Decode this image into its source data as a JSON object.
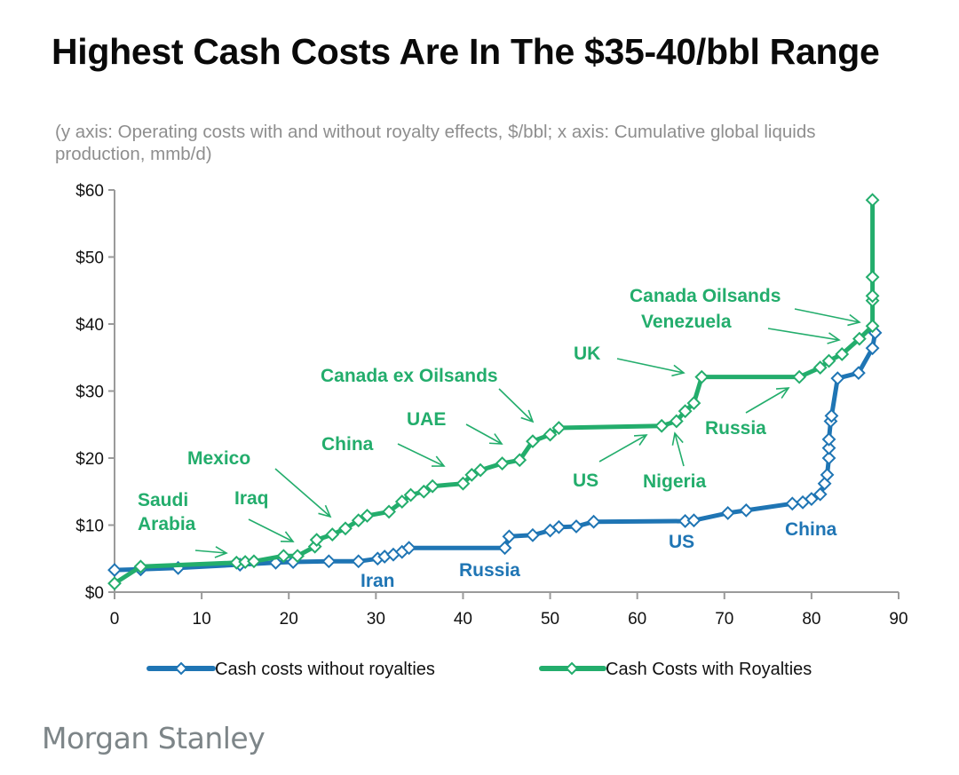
{
  "header": {
    "title": "Highest Cash Costs Are In The $35-40/bbl Range",
    "subtitle": "(y axis: Operating costs with and without royalty effects, $/bbl; x axis: Cumulative global liquids production, mmb/d)"
  },
  "footer": {
    "brand": "Morgan Stanley"
  },
  "colors": {
    "without_royalties": "#1f75b4",
    "with_royalties": "#23ad6c",
    "axis": "#9a9a9a"
  },
  "chart_data": {
    "type": "line",
    "title": "Highest Cash Costs Are In The $35-40/bbl Range",
    "xlabel": "Cumulative global liquids production, mmb/d",
    "ylabel": "Operating costs with and without royalty effects, $/bbl",
    "xlim": [
      0,
      90
    ],
    "ylim": [
      0,
      60
    ],
    "x_ticks": [
      0,
      10,
      20,
      30,
      40,
      50,
      60,
      70,
      80,
      90
    ],
    "x_tick_labels": [
      "0",
      "10",
      "20",
      "30",
      "40",
      "50",
      "60",
      "70",
      "80",
      "90"
    ],
    "y_ticks": [
      0,
      10,
      20,
      30,
      40,
      50,
      60
    ],
    "y_tick_labels": [
      "$0",
      "$10",
      "$20",
      "$30",
      "$40",
      "$50",
      "$60"
    ],
    "grid": false,
    "legend_position": "bottom",
    "series": [
      {
        "name": "Cash costs without royalties",
        "color": "#1f75b4",
        "marker": "diamond",
        "points": [
          [
            0,
            3.3
          ],
          [
            3,
            3.4
          ],
          [
            7.3,
            3.6
          ],
          [
            14.4,
            4.1
          ],
          [
            18.5,
            4.4
          ],
          [
            20.5,
            4.5
          ],
          [
            24.6,
            4.6
          ],
          [
            28,
            4.6
          ],
          [
            30.2,
            5.0
          ],
          [
            31,
            5.3
          ],
          [
            32,
            5.6
          ],
          [
            33,
            6.0
          ],
          [
            33.8,
            6.6
          ],
          [
            44.8,
            6.6
          ],
          [
            45.3,
            8.3
          ],
          [
            48,
            8.5
          ],
          [
            50,
            9.2
          ],
          [
            51,
            9.7
          ],
          [
            53,
            9.8
          ],
          [
            55,
            10.5
          ],
          [
            65.5,
            10.6
          ],
          [
            66.5,
            10.7
          ],
          [
            70.4,
            11.8
          ],
          [
            72.5,
            12.2
          ],
          [
            77.8,
            13.2
          ],
          [
            79,
            13.4
          ],
          [
            80,
            13.9
          ],
          [
            81,
            14.6
          ],
          [
            81.5,
            16.2
          ],
          [
            81.8,
            17.5
          ],
          [
            82,
            20
          ],
          [
            82,
            21.5
          ],
          [
            82,
            22.8
          ],
          [
            82.2,
            25.5
          ],
          [
            82.3,
            26.3
          ],
          [
            83,
            31.9
          ],
          [
            85.4,
            32.7
          ],
          [
            87,
            36.4
          ],
          [
            87.3,
            38.7
          ]
        ]
      },
      {
        "name": "Cash Costs with Royalties",
        "color": "#23ad6c",
        "marker": "diamond",
        "points": [
          [
            0,
            1.3
          ],
          [
            3,
            3.8
          ],
          [
            14,
            4.4
          ],
          [
            15,
            4.5
          ],
          [
            16,
            4.6
          ],
          [
            19.4,
            5.4
          ],
          [
            21,
            5.4
          ],
          [
            23,
            6.8
          ],
          [
            23.2,
            7.8
          ],
          [
            25,
            8.6
          ],
          [
            26.5,
            9.5
          ],
          [
            28,
            10.7
          ],
          [
            29,
            11.4
          ],
          [
            31.5,
            12.0
          ],
          [
            33,
            13.5
          ],
          [
            34,
            14.5
          ],
          [
            35.5,
            15.0
          ],
          [
            36.5,
            15.8
          ],
          [
            40,
            16.2
          ],
          [
            41,
            17.5
          ],
          [
            42,
            18.2
          ],
          [
            44.5,
            19.2
          ],
          [
            46.5,
            19.7
          ],
          [
            48,
            22.5
          ],
          [
            50,
            23.5
          ],
          [
            51,
            24.5
          ],
          [
            62.8,
            24.8
          ],
          [
            64.5,
            25.5
          ],
          [
            65.5,
            27.0
          ],
          [
            66.5,
            28.2
          ],
          [
            67.4,
            32.1
          ],
          [
            78.6,
            32.1
          ],
          [
            81,
            33.5
          ],
          [
            82,
            34.5
          ],
          [
            83.5,
            35.5
          ],
          [
            85.5,
            37.8
          ],
          [
            87,
            39.7
          ],
          [
            87,
            43.5
          ],
          [
            87,
            44.2
          ],
          [
            87,
            47
          ],
          [
            87,
            58.5
          ]
        ]
      }
    ],
    "annotations": [
      {
        "text": "Saudi Arabia",
        "series": "Cash Costs with Royalties",
        "target": [
          13,
          4.7
        ]
      },
      {
        "text": "Iraq",
        "series": "Cash Costs with Royalties",
        "target": [
          20.5,
          5.9
        ]
      },
      {
        "text": "Mexico",
        "series": "Cash Costs with Royalties",
        "target": [
          24.8,
          11.2
        ]
      },
      {
        "text": "China",
        "series": "Cash Costs with Royalties",
        "target": [
          37.5,
          16.5
        ]
      },
      {
        "text": "UAE",
        "series": "Cash Costs with Royalties",
        "target": [
          44.5,
          21.5
        ]
      },
      {
        "text": "Canada ex Oilsands",
        "series": "Cash Costs with Royalties",
        "target": [
          48,
          25.5
        ]
      },
      {
        "text": "US",
        "series": "Cash Costs with Royalties",
        "target": [
          62.5,
          23.5
        ]
      },
      {
        "text": "Nigeria",
        "series": "Cash Costs with Royalties",
        "target": [
          64.5,
          25.5
        ]
      },
      {
        "text": "UK",
        "series": "Cash Costs with Royalties",
        "target": [
          65.8,
          32.5
        ]
      },
      {
        "text": "Russia",
        "series": "Cash Costs with Royalties",
        "target": [
          77.5,
          29.5
        ]
      },
      {
        "text": "Venezuela",
        "series": "Cash Costs with Royalties",
        "target": [
          83,
          38.0
        ]
      },
      {
        "text": "Canada Oilsands",
        "series": "Cash Costs with Royalties",
        "target": [
          85.5,
          40.0
        ]
      },
      {
        "text": "Iran",
        "series": "Cash costs without royalties"
      },
      {
        "text": "Russia",
        "series": "Cash costs without royalties"
      },
      {
        "text": "US",
        "series": "Cash costs without royalties"
      },
      {
        "text": "China",
        "series": "Cash costs without royalties"
      }
    ]
  }
}
